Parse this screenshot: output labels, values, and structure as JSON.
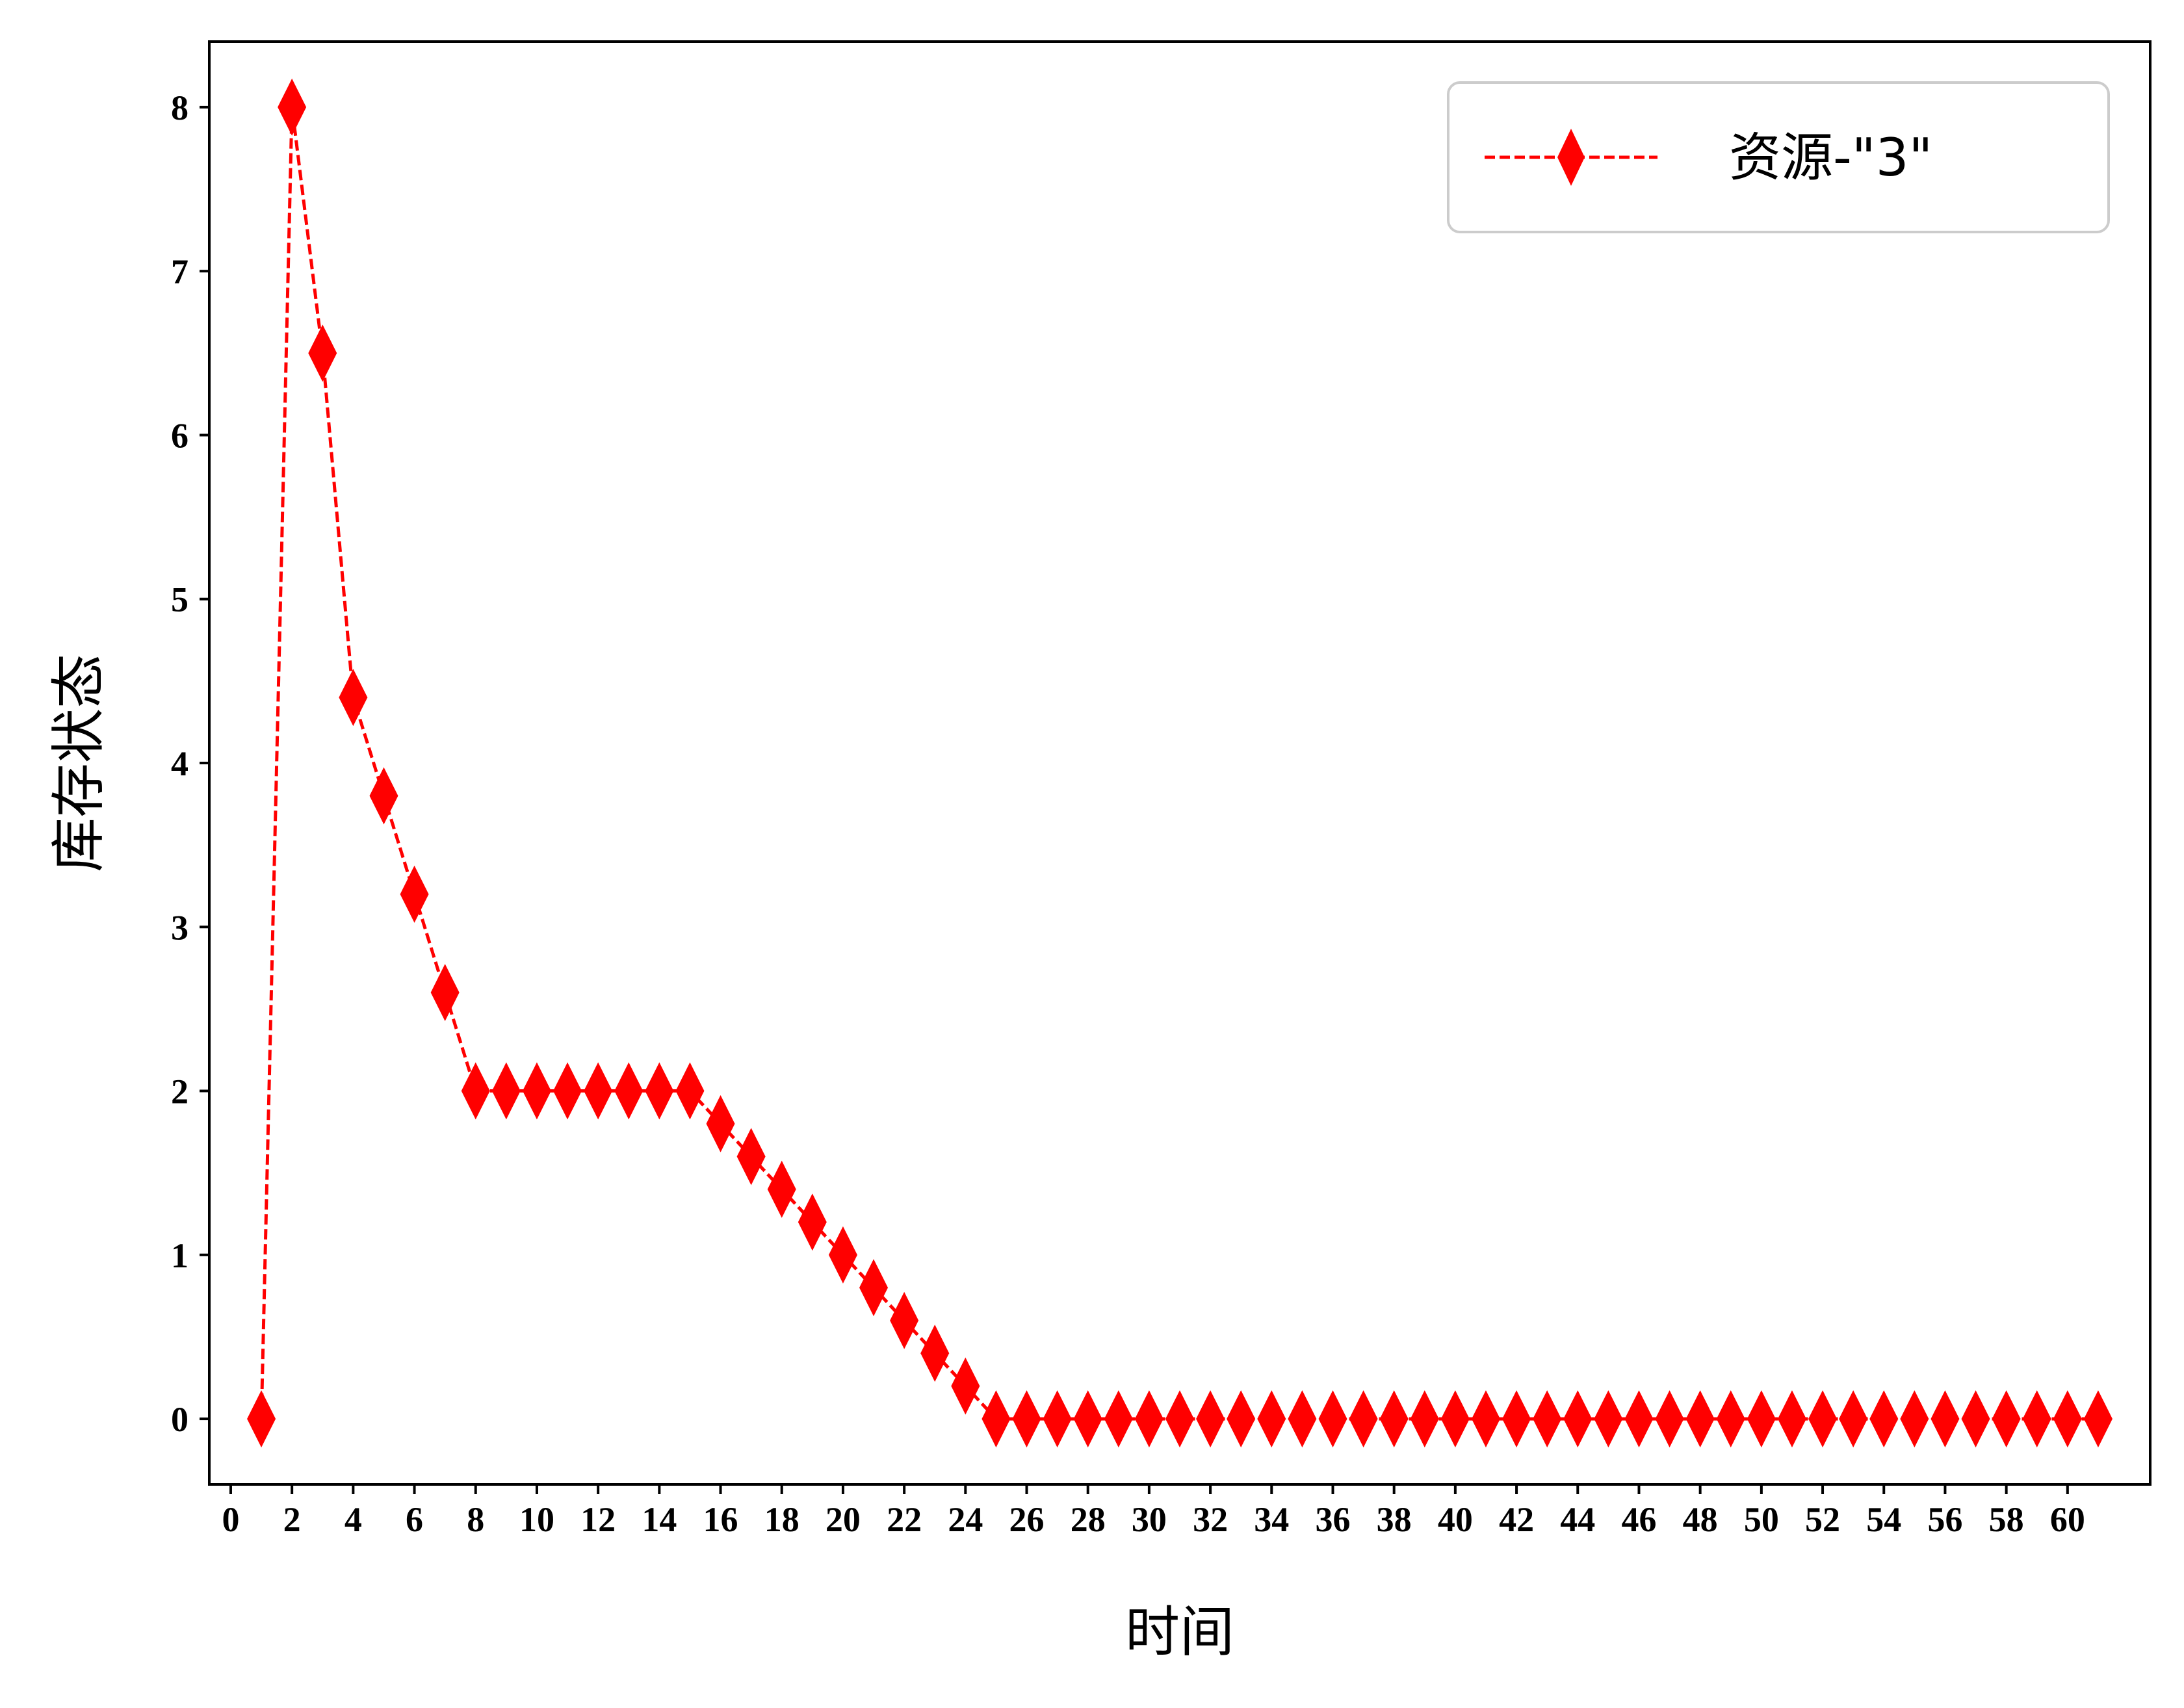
{
  "chart_data": {
    "type": "line",
    "title": "",
    "xlabel": "时间",
    "ylabel": "库存状态",
    "xlim": [
      -0.7,
      62.7
    ],
    "ylim": [
      -0.4,
      8.4
    ],
    "xticks": [
      0,
      2,
      4,
      6,
      8,
      10,
      12,
      14,
      16,
      18,
      20,
      22,
      24,
      26,
      28,
      30,
      32,
      34,
      36,
      38,
      40,
      42,
      44,
      46,
      48,
      50,
      52,
      54,
      56,
      58,
      60
    ],
    "yticks": [
      0,
      1,
      2,
      3,
      4,
      5,
      6,
      7,
      8
    ],
    "grid": false,
    "legend_position": "top-right",
    "series": [
      {
        "name": "资源-\"3\"",
        "color": "#ff0000",
        "line_style": "dashed",
        "marker": "thin-diamond",
        "x": [
          1,
          2,
          3,
          4,
          5,
          6,
          7,
          8,
          9,
          10,
          11,
          12,
          13,
          14,
          15,
          16,
          17,
          18,
          19,
          20,
          21,
          22,
          23,
          24,
          25,
          26,
          27,
          28,
          29,
          30,
          31,
          32,
          33,
          34,
          35,
          36,
          37,
          38,
          39,
          40,
          41,
          42,
          43,
          44,
          45,
          46,
          47,
          48,
          49,
          50,
          51,
          52,
          53,
          54,
          55,
          56,
          57,
          58,
          59,
          60,
          61
        ],
        "y": [
          0,
          8,
          6.5,
          4.4,
          3.8,
          3.2,
          2.6,
          2,
          2,
          2,
          2,
          2,
          2,
          2,
          2,
          1.8,
          1.6,
          1.4,
          1.2,
          1.0,
          0.8,
          0.6,
          0.4,
          0.2,
          0,
          0,
          0,
          0,
          0,
          0,
          0,
          0,
          0,
          0,
          0,
          0,
          0,
          0,
          0,
          0,
          0,
          0,
          0,
          0,
          0,
          0,
          0,
          0,
          0,
          0,
          0,
          0,
          0,
          0,
          0,
          0,
          0,
          0,
          0,
          0,
          0
        ]
      }
    ]
  }
}
